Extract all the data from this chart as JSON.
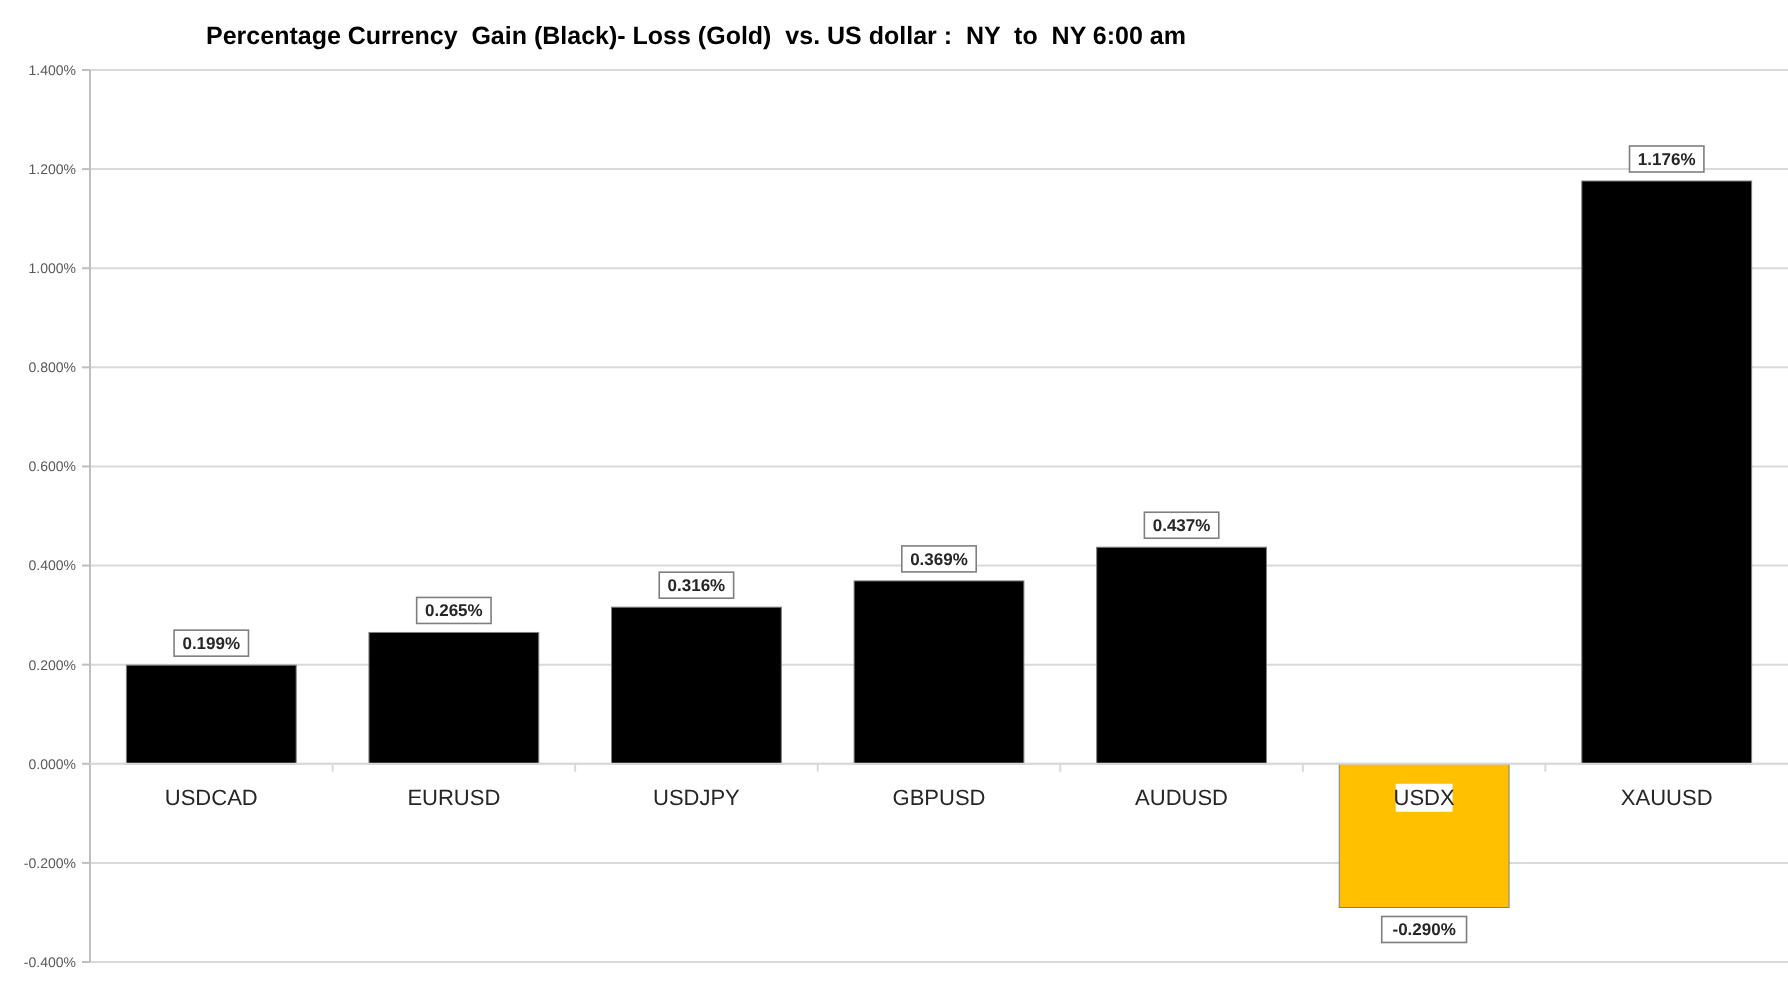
{
  "chart_data": {
    "type": "bar",
    "title": "Percentage Currency  Gain (Black)- Loss (Gold)  vs. US dollar :  NY  to  NY 6:00 am",
    "categories": [
      "USDCAD",
      "EURUSD",
      "USDJPY",
      "GBPUSD",
      "AUDUSD",
      "USDX",
      "XAUUSD"
    ],
    "values": [
      0.199,
      0.265,
      0.316,
      0.369,
      0.437,
      -0.29,
      1.176
    ],
    "colors": [
      "#000000",
      "#000000",
      "#000000",
      "#000000",
      "#000000",
      "#ffc000",
      "#000000"
    ],
    "value_labels": [
      "0.199%",
      "0.265%",
      "0.316%",
      "0.369%",
      "0.437%",
      "-0.290%",
      "1.176%"
    ],
    "ylim": [
      -0.4,
      1.4
    ],
    "yticks": [
      {
        "value": -0.4,
        "label": "-0.400%"
      },
      {
        "value": -0.2,
        "label": "-0.200%"
      },
      {
        "value": 0,
        "label": "0.000%"
      },
      {
        "value": 0.2,
        "label": "0.200%"
      },
      {
        "value": 0.4,
        "label": "0.400%"
      },
      {
        "value": 0.6,
        "label": "0.600%"
      },
      {
        "value": 0.8,
        "label": "0.800%"
      },
      {
        "value": 1.0,
        "label": "1.000%"
      },
      {
        "value": 1.2,
        "label": "1.200%"
      },
      {
        "value": 1.4,
        "label": "1.400%"
      }
    ],
    "grid": "y"
  }
}
